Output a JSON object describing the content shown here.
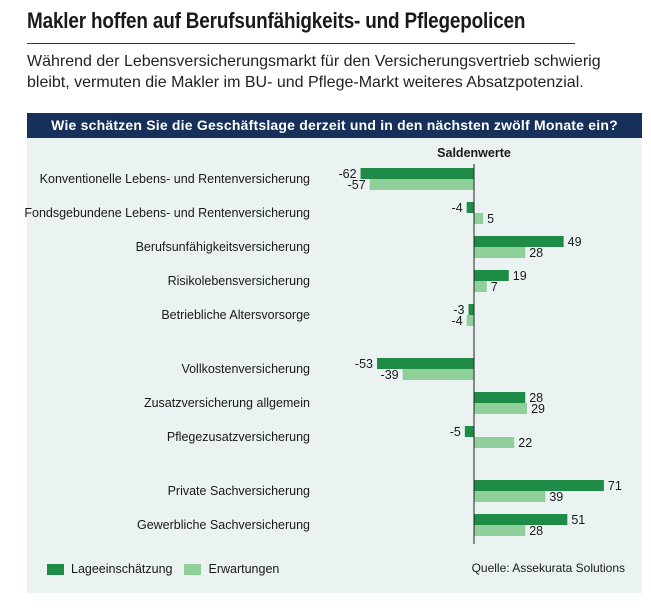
{
  "header": {
    "title": "Makler hoffen auf Berufsunfähigkeits- und Pflegepolicen",
    "subtitle": "Während der Lebensversicherungsmarkt für den Versicherungsvertrieb schwierig bleibt, vermuten die Makler im BU- und Pflege-Markt weiteres Absatzpotenzial.",
    "question": "Wie schätzen Sie die Geschäftslage derzeit und in den nächsten zwölf Monate ein?"
  },
  "colors": {
    "series1": "#1e8c46",
    "series2": "#8ecf9a",
    "banner": "#16305a",
    "panel": "#eaf3f1"
  },
  "legend": {
    "series1": "Lageeinschätzung",
    "series2": "Erwartungen"
  },
  "source": "Quelle: Assekurata Solutions",
  "chart_data": {
    "type": "bar",
    "orientation": "horizontal",
    "title": "Wie schätzen Sie die Geschäftslage derzeit und in den nächsten zwölf Monate ein?",
    "axis_title": "Saldenwerte",
    "categories": [
      "Konventionelle Lebens- und Rentenversicherung",
      "Fondsgebundene Lebens- und Rentenversicherung",
      "Berufsunfähigkeitsversicherung",
      "Risikolebensversicherung",
      "Betriebliche Altersvorsorge",
      "Vollkostenversicherung",
      "Zusatzversicherung allgemein",
      "Pflegezusatzversicherung",
      "Private Sachversicherung",
      "Gewerbliche Sachversicherung"
    ],
    "series": [
      {
        "name": "Lageeinschätzung",
        "values": [
          -62,
          -4,
          49,
          19,
          -3,
          -53,
          28,
          -5,
          71,
          51
        ]
      },
      {
        "name": "Erwartungen",
        "values": [
          -57,
          5,
          28,
          7,
          -4,
          -39,
          29,
          22,
          39,
          28
        ]
      }
    ],
    "legend_position": "bottom-left"
  }
}
